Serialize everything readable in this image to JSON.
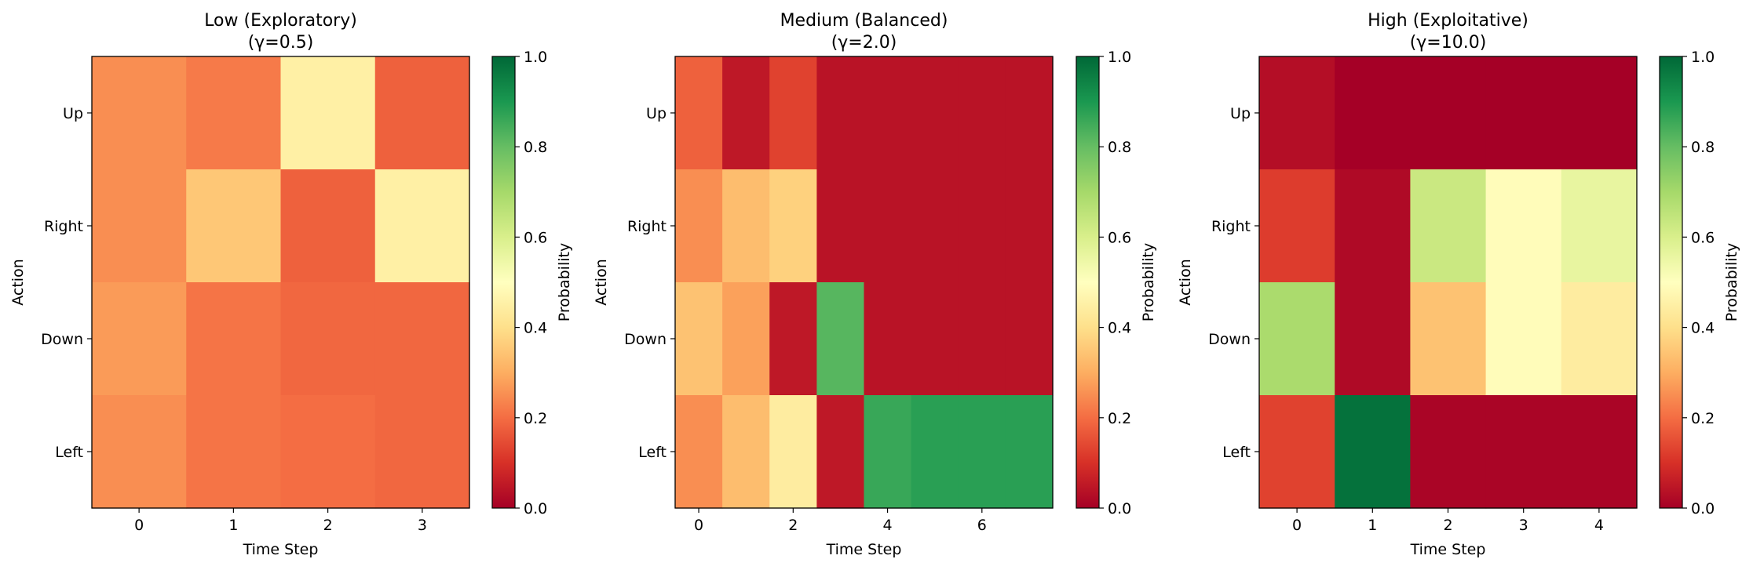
{
  "chart_data": [
    {
      "type": "heatmap",
      "title": "Low (Exploratory)",
      "subtitle": "(γ=0.5)",
      "xlabel": "Time Step",
      "ylabel": "Action",
      "rows": [
        "Up",
        "Right",
        "Down",
        "Left"
      ],
      "x_ticks": [
        0,
        1,
        2,
        3
      ],
      "values": [
        [
          0.25,
          0.22,
          0.45,
          0.18
        ],
        [
          0.25,
          0.35,
          0.18,
          0.45
        ],
        [
          0.27,
          0.21,
          0.19,
          0.19
        ],
        [
          0.25,
          0.21,
          0.2,
          0.19
        ]
      ],
      "colorbar": {
        "label": "Probability",
        "min": 0.0,
        "max": 1.0,
        "ticks": [
          "0.0",
          "0.2",
          "0.4",
          "0.6",
          "0.8",
          "1.0"
        ]
      }
    },
    {
      "type": "heatmap",
      "title": "Medium (Balanced)",
      "subtitle": "(γ=2.0)",
      "xlabel": "Time Step",
      "ylabel": "Action",
      "rows": [
        "Up",
        "Right",
        "Down",
        "Left"
      ],
      "x_ticks": [
        0,
        2,
        4,
        6
      ],
      "values": [
        [
          0.18,
          0.05,
          0.13,
          0.04,
          0.04,
          0.04,
          0.04,
          0.04
        ],
        [
          0.25,
          0.33,
          0.37,
          0.04,
          0.04,
          0.04,
          0.04,
          0.04
        ],
        [
          0.34,
          0.28,
          0.05,
          0.82,
          0.04,
          0.04,
          0.04,
          0.04
        ],
        [
          0.25,
          0.33,
          0.44,
          0.05,
          0.86,
          0.88,
          0.88,
          0.88
        ]
      ],
      "colorbar": {
        "label": "Probability",
        "min": 0.0,
        "max": 1.0,
        "ticks": [
          "0.0",
          "0.2",
          "0.4",
          "0.6",
          "0.8",
          "1.0"
        ]
      }
    },
    {
      "type": "heatmap",
      "title": "High (Exploitative)",
      "subtitle": "(γ=10.0)",
      "xlabel": "Time Step",
      "ylabel": "Action",
      "rows": [
        "Up",
        "Right",
        "Down",
        "Left"
      ],
      "x_ticks": [
        0,
        1,
        2,
        3,
        4
      ],
      "values": [
        [
          0.03,
          0.0,
          0.0,
          0.0,
          0.0
        ],
        [
          0.12,
          0.02,
          0.63,
          0.49,
          0.56
        ],
        [
          0.69,
          0.02,
          0.34,
          0.49,
          0.44
        ],
        [
          0.13,
          0.98,
          0.01,
          0.01,
          0.01
        ]
      ],
      "colorbar": {
        "label": "Probability",
        "min": 0.0,
        "max": 1.0,
        "ticks": [
          "0.0",
          "0.2",
          "0.4",
          "0.6",
          "0.8",
          "1.0"
        ]
      }
    }
  ]
}
